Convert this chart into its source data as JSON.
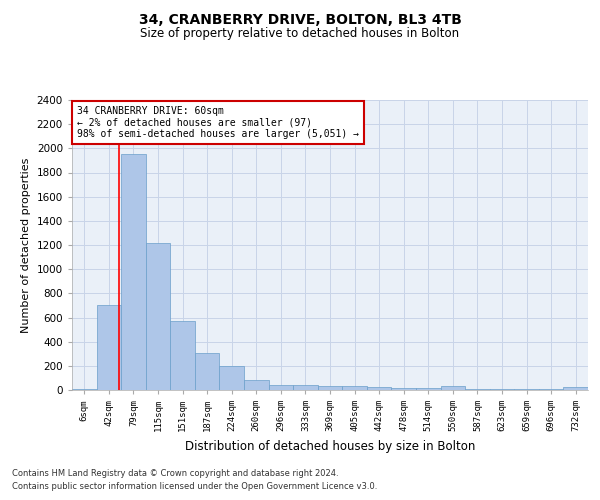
{
  "title1": "34, CRANBERRY DRIVE, BOLTON, BL3 4TB",
  "title2": "Size of property relative to detached houses in Bolton",
  "xlabel": "Distribution of detached houses by size in Bolton",
  "ylabel": "Number of detached properties",
  "footer1": "Contains HM Land Registry data © Crown copyright and database right 2024.",
  "footer2": "Contains public sector information licensed under the Open Government Licence v3.0.",
  "bin_labels": [
    "6sqm",
    "42sqm",
    "79sqm",
    "115sqm",
    "151sqm",
    "187sqm",
    "224sqm",
    "260sqm",
    "296sqm",
    "333sqm",
    "369sqm",
    "405sqm",
    "442sqm",
    "478sqm",
    "514sqm",
    "550sqm",
    "587sqm",
    "623sqm",
    "659sqm",
    "696sqm",
    "732sqm"
  ],
  "bar_values": [
    10,
    700,
    1950,
    1220,
    575,
    305,
    200,
    80,
    45,
    40,
    35,
    30,
    25,
    20,
    15,
    30,
    5,
    10,
    5,
    5,
    25
  ],
  "bar_color": "#aec6e8",
  "bar_edge_color": "#6a9fca",
  "grid_color": "#c8d4e8",
  "bg_color": "#eaf0f8",
  "red_line_x": 1.43,
  "annotation_text": "34 CRANBERRY DRIVE: 60sqm\n← 2% of detached houses are smaller (97)\n98% of semi-detached houses are larger (5,051) →",
  "annotation_box_color": "#ffffff",
  "annotation_box_edge": "#cc0000",
  "ylim": [
    0,
    2400
  ],
  "yticks": [
    0,
    200,
    400,
    600,
    800,
    1000,
    1200,
    1400,
    1600,
    1800,
    2000,
    2200,
    2400
  ]
}
